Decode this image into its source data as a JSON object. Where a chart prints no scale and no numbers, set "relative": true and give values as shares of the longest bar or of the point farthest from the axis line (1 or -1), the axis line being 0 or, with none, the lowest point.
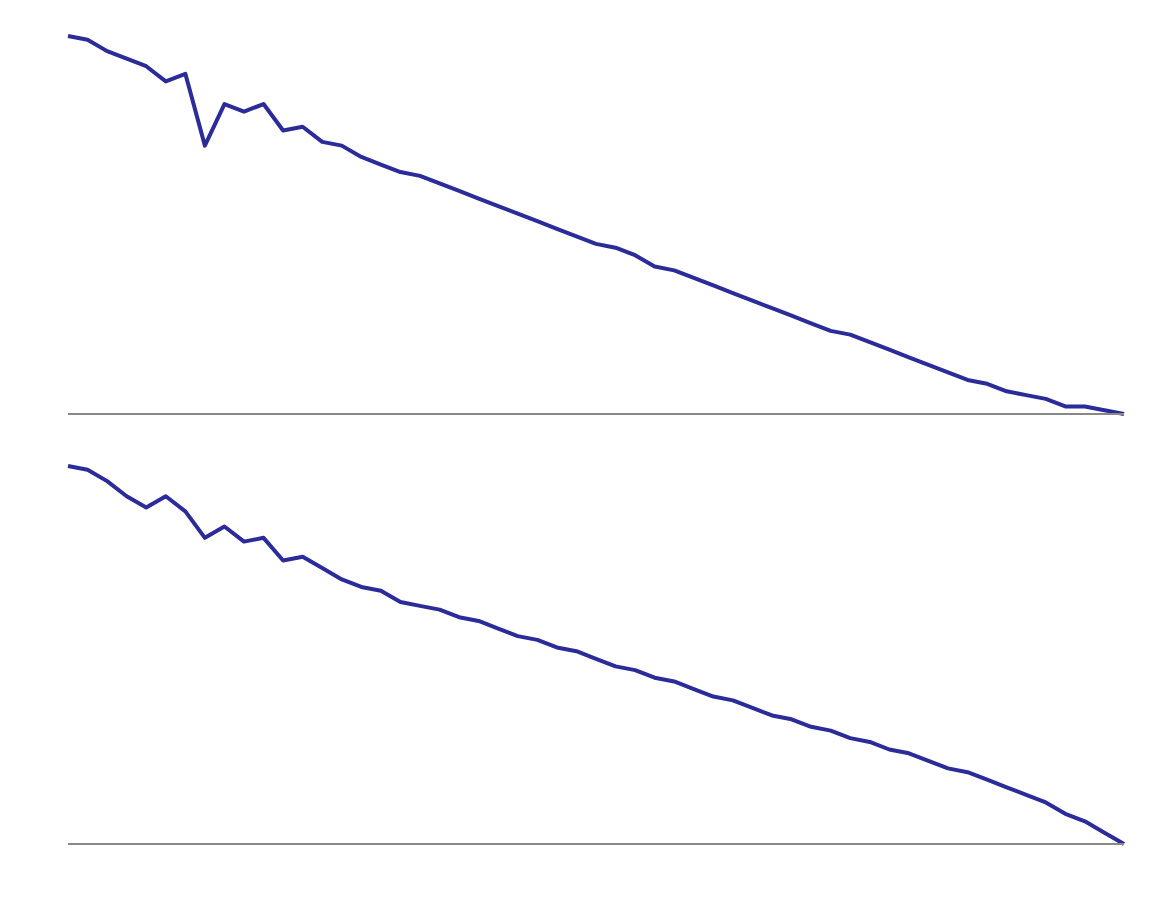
{
  "chart_data": [
    {
      "type": "line",
      "relative": true,
      "categories": [
        null,
        null,
        null,
        null,
        null,
        null,
        null,
        null,
        null,
        null,
        null,
        null,
        null,
        null,
        null,
        null,
        null,
        null,
        null,
        null,
        null,
        null,
        null,
        null,
        null,
        null,
        null,
        null,
        null,
        null,
        null,
        null,
        null,
        null,
        null,
        null,
        null,
        null,
        null,
        null,
        null,
        null,
        null,
        null,
        null,
        null,
        null,
        null,
        null,
        null,
        null,
        null,
        null,
        null,
        null
      ],
      "series": [
        {
          "color": "#2b2b9a",
          "values": [
            1.0,
            0.99,
            0.96,
            0.94,
            0.92,
            0.88,
            0.9,
            0.71,
            0.82,
            0.8,
            0.82,
            0.75,
            0.76,
            0.72,
            0.71,
            0.68,
            0.66,
            0.64,
            0.63,
            0.61,
            0.59,
            0.57,
            0.55,
            0.53,
            0.51,
            0.49,
            0.47,
            0.45,
            0.44,
            0.42,
            0.39,
            0.38,
            0.36,
            0.34,
            0.32,
            0.3,
            0.28,
            0.26,
            0.24,
            0.22,
            0.21,
            0.19,
            0.17,
            0.15,
            0.13,
            0.11,
            0.09,
            0.08,
            0.06,
            0.05,
            0.04,
            0.02,
            0.02,
            0.01,
            0
          ]
        }
      ],
      "grid": false,
      "legend": false,
      "marker": "none",
      "line_style": "solid"
    },
    {
      "type": "line",
      "relative": true,
      "categories": [
        null,
        null,
        null,
        null,
        null,
        null,
        null,
        null,
        null,
        null,
        null,
        null,
        null,
        null,
        null,
        null,
        null,
        null,
        null,
        null,
        null,
        null,
        null,
        null,
        null,
        null,
        null,
        null,
        null,
        null,
        null,
        null,
        null,
        null,
        null,
        null,
        null,
        null,
        null,
        null,
        null,
        null,
        null,
        null,
        null,
        null,
        null,
        null,
        null,
        null,
        null,
        null,
        null,
        null,
        null
      ],
      "series": [
        {
          "color": "#2b2b9a",
          "values": [
            1.0,
            0.99,
            0.96,
            0.92,
            0.89,
            0.92,
            0.88,
            0.81,
            0.84,
            0.8,
            0.81,
            0.75,
            0.76,
            0.73,
            0.7,
            0.68,
            0.67,
            0.64,
            0.63,
            0.62,
            0.6,
            0.59,
            0.57,
            0.55,
            0.54,
            0.52,
            0.51,
            0.49,
            0.47,
            0.46,
            0.44,
            0.43,
            0.41,
            0.39,
            0.38,
            0.36,
            0.34,
            0.33,
            0.31,
            0.3,
            0.28,
            0.27,
            0.25,
            0.24,
            0.22,
            0.2,
            0.19,
            0.17,
            0.15,
            0.13,
            0.11,
            0.08,
            0.06,
            0.03,
            0
          ]
        }
      ],
      "grid": false,
      "legend": false,
      "marker": "none",
      "line_style": "solid"
    }
  ]
}
